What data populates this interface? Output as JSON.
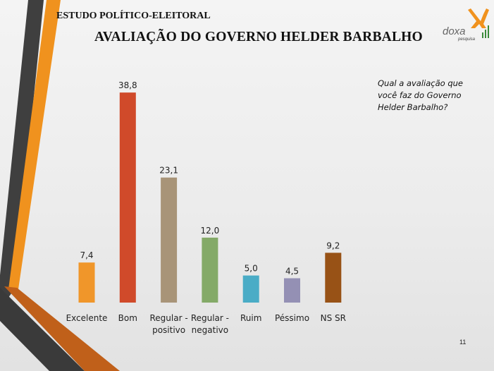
{
  "header": {
    "study_label": "ESTUDO POLÍTICO-ELEITORAL",
    "title": "AVALIAÇÃO DO GOVERNO HELDER BARBALHO"
  },
  "logo": {
    "name": "doxa",
    "tagline": "pesquisa"
  },
  "question": "Qual a avaliação que você faz do Governo Helder Barbalho?",
  "page_number": "11",
  "colors": {
    "stripe_dark": "#404040",
    "stripe_orange": "#f0921e",
    "stripe_brown": "#c0601a"
  },
  "chart_data": {
    "type": "bar",
    "categories": [
      "Excelente",
      "Bom",
      "Regular - positivo",
      "Regular - negativo",
      "Ruim",
      "Péssimo",
      "NS SR"
    ],
    "category_lines": [
      [
        "Excelente"
      ],
      [
        "Bom"
      ],
      [
        "Regular -",
        "positivo"
      ],
      [
        "Regular -",
        "negativo"
      ],
      [
        "Ruim"
      ],
      [
        "Péssimo"
      ],
      [
        "NS SR"
      ]
    ],
    "values": [
      7.4,
      38.8,
      23.1,
      12.0,
      5.0,
      4.5,
      9.2
    ],
    "value_labels": [
      "7,4",
      "38,8",
      "23,1",
      "12,0",
      "5,0",
      "4,5",
      "9,2"
    ],
    "colors": [
      "#f0962a",
      "#d04a2a",
      "#a89478",
      "#84aa68",
      "#4aacc6",
      "#9490b4",
      "#985216"
    ],
    "ylim": [
      0,
      40
    ],
    "grid": false,
    "legend": "none",
    "title": "AVALIAÇÃO DO GOVERNO HELDER BARBALHO",
    "xlabel": "",
    "ylabel": ""
  }
}
